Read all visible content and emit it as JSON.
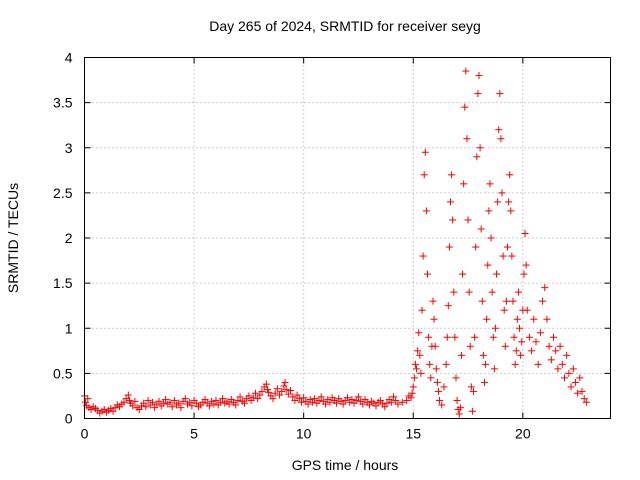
{
  "chart_data": {
    "type": "scatter",
    "title": "Day 265 of 2024, SRMTID for receiver seyg",
    "xlabel": "GPS time / hours",
    "ylabel": "SRMTID / TECUs",
    "xlim": [
      0,
      24
    ],
    "ylim": [
      0,
      4
    ],
    "x_ticks": [
      0,
      5,
      10,
      15,
      20
    ],
    "x_tick_labels": [
      "0",
      "5",
      "10",
      "15",
      "20"
    ],
    "y_ticks": [
      0,
      0.5,
      1,
      1.5,
      2,
      2.5,
      3,
      3.5,
      4
    ],
    "y_tick_labels": [
      "0",
      "0.5",
      "1",
      "1.5",
      "2",
      "2.5",
      "3",
      "3.5",
      "4"
    ],
    "grid": true,
    "marker": "plus",
    "colors": {
      "series": "#ff0000",
      "grid": "#a0a0a0",
      "axis": "#000000"
    },
    "series": [
      {
        "name": "SRMTID",
        "points": [
          [
            0.0,
            0.25
          ],
          [
            0.05,
            0.18
          ],
          [
            0.1,
            0.14
          ],
          [
            0.15,
            0.22
          ],
          [
            0.2,
            0.12
          ],
          [
            0.3,
            0.1
          ],
          [
            0.4,
            0.13
          ],
          [
            0.5,
            0.11
          ],
          [
            0.6,
            0.09
          ],
          [
            0.7,
            0.06
          ],
          [
            0.8,
            0.08
          ],
          [
            0.9,
            0.1
          ],
          [
            1.0,
            0.07
          ],
          [
            1.1,
            0.09
          ],
          [
            1.2,
            0.11
          ],
          [
            1.3,
            0.08
          ],
          [
            1.4,
            0.12
          ],
          [
            1.5,
            0.15
          ],
          [
            1.6,
            0.13
          ],
          [
            1.7,
            0.16
          ],
          [
            1.8,
            0.18
          ],
          [
            1.9,
            0.22
          ],
          [
            2.0,
            0.26
          ],
          [
            2.05,
            0.2
          ],
          [
            2.1,
            0.17
          ],
          [
            2.2,
            0.14
          ],
          [
            2.3,
            0.19
          ],
          [
            2.4,
            0.12
          ],
          [
            2.5,
            0.1
          ],
          [
            2.6,
            0.14
          ],
          [
            2.7,
            0.17
          ],
          [
            2.8,
            0.13
          ],
          [
            2.9,
            0.2
          ],
          [
            3.0,
            0.15
          ],
          [
            3.1,
            0.18
          ],
          [
            3.2,
            0.12
          ],
          [
            3.3,
            0.16
          ],
          [
            3.4,
            0.19
          ],
          [
            3.5,
            0.14
          ],
          [
            3.6,
            0.17
          ],
          [
            3.7,
            0.21
          ],
          [
            3.8,
            0.16
          ],
          [
            3.9,
            0.18
          ],
          [
            4.0,
            0.13
          ],
          [
            4.1,
            0.2
          ],
          [
            4.2,
            0.15
          ],
          [
            4.3,
            0.17
          ],
          [
            4.4,
            0.12
          ],
          [
            4.5,
            0.19
          ],
          [
            4.6,
            0.22
          ],
          [
            4.7,
            0.16
          ],
          [
            4.8,
            0.18
          ],
          [
            4.9,
            0.14
          ],
          [
            5.0,
            0.2
          ],
          [
            5.1,
            0.17
          ],
          [
            5.2,
            0.13
          ],
          [
            5.3,
            0.15
          ],
          [
            5.4,
            0.18
          ],
          [
            5.5,
            0.21
          ],
          [
            5.6,
            0.17
          ],
          [
            5.7,
            0.14
          ],
          [
            5.8,
            0.19
          ],
          [
            5.9,
            0.16
          ],
          [
            6.0,
            0.2
          ],
          [
            6.1,
            0.15
          ],
          [
            6.2,
            0.18
          ],
          [
            6.3,
            0.22
          ],
          [
            6.4,
            0.17
          ],
          [
            6.5,
            0.19
          ],
          [
            6.6,
            0.16
          ],
          [
            6.7,
            0.21
          ],
          [
            6.8,
            0.18
          ],
          [
            6.9,
            0.15
          ],
          [
            7.0,
            0.2
          ],
          [
            7.1,
            0.24
          ],
          [
            7.2,
            0.19
          ],
          [
            7.3,
            0.17
          ],
          [
            7.4,
            0.22
          ],
          [
            7.5,
            0.25
          ],
          [
            7.6,
            0.2
          ],
          [
            7.7,
            0.23
          ],
          [
            7.8,
            0.28
          ],
          [
            7.9,
            0.22
          ],
          [
            8.0,
            0.26
          ],
          [
            8.1,
            0.3
          ],
          [
            8.2,
            0.35
          ],
          [
            8.3,
            0.38
          ],
          [
            8.35,
            0.32
          ],
          [
            8.4,
            0.29
          ],
          [
            8.5,
            0.25
          ],
          [
            8.6,
            0.22
          ],
          [
            8.7,
            0.28
          ],
          [
            8.8,
            0.33
          ],
          [
            8.9,
            0.26
          ],
          [
            9.0,
            0.3
          ],
          [
            9.1,
            0.36
          ],
          [
            9.15,
            0.4
          ],
          [
            9.2,
            0.32
          ],
          [
            9.3,
            0.27
          ],
          [
            9.4,
            0.31
          ],
          [
            9.5,
            0.24
          ],
          [
            9.6,
            0.2
          ],
          [
            9.7,
            0.26
          ],
          [
            9.8,
            0.22
          ],
          [
            9.9,
            0.18
          ],
          [
            10.0,
            0.23
          ],
          [
            10.1,
            0.19
          ],
          [
            10.2,
            0.16
          ],
          [
            10.3,
            0.21
          ],
          [
            10.4,
            0.18
          ],
          [
            10.5,
            0.22
          ],
          [
            10.6,
            0.17
          ],
          [
            10.7,
            0.2
          ],
          [
            10.8,
            0.24
          ],
          [
            10.9,
            0.19
          ],
          [
            11.0,
            0.16
          ],
          [
            11.1,
            0.21
          ],
          [
            11.2,
            0.18
          ],
          [
            11.3,
            0.23
          ],
          [
            11.4,
            0.2
          ],
          [
            11.5,
            0.17
          ],
          [
            11.6,
            0.22
          ],
          [
            11.7,
            0.19
          ],
          [
            11.8,
            0.16
          ],
          [
            11.9,
            0.2
          ],
          [
            12.0,
            0.23
          ],
          [
            12.1,
            0.18
          ],
          [
            12.2,
            0.21
          ],
          [
            12.3,
            0.17
          ],
          [
            12.4,
            0.2
          ],
          [
            12.5,
            0.24
          ],
          [
            12.6,
            0.19
          ],
          [
            12.7,
            0.16
          ],
          [
            12.8,
            0.21
          ],
          [
            12.9,
            0.18
          ],
          [
            13.0,
            0.15
          ],
          [
            13.1,
            0.19
          ],
          [
            13.2,
            0.17
          ],
          [
            13.3,
            0.14
          ],
          [
            13.4,
            0.18
          ],
          [
            13.5,
            0.2
          ],
          [
            13.6,
            0.16
          ],
          [
            13.7,
            0.13
          ],
          [
            13.8,
            0.17
          ],
          [
            13.9,
            0.21
          ],
          [
            14.0,
            0.18
          ],
          [
            14.1,
            0.24
          ],
          [
            14.2,
            0.2
          ],
          [
            14.3,
            0.16
          ],
          [
            14.5,
            0.18
          ],
          [
            14.7,
            0.2
          ],
          [
            14.8,
            0.25
          ],
          [
            14.9,
            0.23
          ],
          [
            14.95,
            0.28
          ],
          [
            15.0,
            0.35
          ],
          [
            15.05,
            0.45
          ],
          [
            15.1,
            0.6
          ],
          [
            15.15,
            0.55
          ],
          [
            15.2,
            0.75
          ],
          [
            15.25,
            0.95
          ],
          [
            15.3,
            0.7
          ],
          [
            15.35,
            0.5
          ],
          [
            15.4,
            1.2
          ],
          [
            15.45,
            1.8
          ],
          [
            15.5,
            2.7
          ],
          [
            15.55,
            2.95
          ],
          [
            15.6,
            2.3
          ],
          [
            15.65,
            1.6
          ],
          [
            15.7,
            0.9
          ],
          [
            15.75,
            0.6
          ],
          [
            15.8,
            0.45
          ],
          [
            15.85,
            0.8
          ],
          [
            15.9,
            1.3
          ],
          [
            15.95,
            1.1
          ],
          [
            16.0,
            0.8
          ],
          [
            16.05,
            0.55
          ],
          [
            16.1,
            0.4
          ],
          [
            16.15,
            0.3
          ],
          [
            16.2,
            0.2
          ],
          [
            16.3,
            0.15
          ],
          [
            16.4,
            0.35
          ],
          [
            16.5,
            0.6
          ],
          [
            16.55,
            0.9
          ],
          [
            16.6,
            1.25
          ],
          [
            16.65,
            1.9
          ],
          [
            16.7,
            2.4
          ],
          [
            16.75,
            2.7
          ],
          [
            16.8,
            2.2
          ],
          [
            16.85,
            1.4
          ],
          [
            16.9,
            0.9
          ],
          [
            16.95,
            0.45
          ],
          [
            17.0,
            0.2
          ],
          [
            17.05,
            0.1
          ],
          [
            17.1,
            0.05
          ],
          [
            17.15,
            0.12
          ],
          [
            17.2,
            0.7
          ],
          [
            17.25,
            1.6
          ],
          [
            17.3,
            2.6
          ],
          [
            17.35,
            3.45
          ],
          [
            17.4,
            3.85
          ],
          [
            17.45,
            3.1
          ],
          [
            17.5,
            2.2
          ],
          [
            17.55,
            1.4
          ],
          [
            17.6,
            0.8
          ],
          [
            17.65,
            0.35
          ],
          [
            17.7,
            0.08
          ],
          [
            17.75,
            0.3
          ],
          [
            17.8,
            0.9
          ],
          [
            17.85,
            1.9
          ],
          [
            17.9,
            2.9
          ],
          [
            17.95,
            3.6
          ],
          [
            18.0,
            3.8
          ],
          [
            18.05,
            3.0
          ],
          [
            18.1,
            2.1
          ],
          [
            18.15,
            1.3
          ],
          [
            18.2,
            0.7
          ],
          [
            18.25,
            0.4
          ],
          [
            18.3,
            0.6
          ],
          [
            18.35,
            1.1
          ],
          [
            18.4,
            1.7
          ],
          [
            18.45,
            2.3
          ],
          [
            18.5,
            2.6
          ],
          [
            18.55,
            2.0
          ],
          [
            18.6,
            1.4
          ],
          [
            18.65,
            0.9
          ],
          [
            18.7,
            0.55
          ],
          [
            18.75,
            1.0
          ],
          [
            18.8,
            1.6
          ],
          [
            18.85,
            2.4
          ],
          [
            18.9,
            3.2
          ],
          [
            18.95,
            3.6
          ],
          [
            19.0,
            3.1
          ],
          [
            19.05,
            2.5
          ],
          [
            19.1,
            1.8
          ],
          [
            19.15,
            1.2
          ],
          [
            19.2,
            0.8
          ],
          [
            19.25,
            1.3
          ],
          [
            19.3,
            1.9
          ],
          [
            19.35,
            2.4
          ],
          [
            19.4,
            2.7
          ],
          [
            19.45,
            2.3
          ],
          [
            19.5,
            1.8
          ],
          [
            19.55,
            1.3
          ],
          [
            19.6,
            0.9
          ],
          [
            19.65,
            0.6
          ],
          [
            19.7,
            0.75
          ],
          [
            19.75,
            1.1
          ],
          [
            19.8,
            1.4
          ],
          [
            19.85,
            1.0
          ],
          [
            19.9,
            0.7
          ],
          [
            19.95,
            0.85
          ],
          [
            20.0,
            1.2
          ],
          [
            20.05,
            1.6
          ],
          [
            20.1,
            2.05
          ],
          [
            20.15,
            1.7
          ],
          [
            20.2,
            1.2
          ],
          [
            20.3,
            0.9
          ],
          [
            20.4,
            0.75
          ],
          [
            20.5,
            1.1
          ],
          [
            20.6,
            0.85
          ],
          [
            20.7,
            0.6
          ],
          [
            20.8,
            0.95
          ],
          [
            20.9,
            1.3
          ],
          [
            21.0,
            1.45
          ],
          [
            21.1,
            1.1
          ],
          [
            21.2,
            0.8
          ],
          [
            21.3,
            0.65
          ],
          [
            21.4,
            0.9
          ],
          [
            21.5,
            0.75
          ],
          [
            21.6,
            0.55
          ],
          [
            21.7,
            0.8
          ],
          [
            21.8,
            0.6
          ],
          [
            21.9,
            0.45
          ],
          [
            22.0,
            0.7
          ],
          [
            22.1,
            0.5
          ],
          [
            22.2,
            0.35
          ],
          [
            22.3,
            0.55
          ],
          [
            22.4,
            0.4
          ],
          [
            22.5,
            0.28
          ],
          [
            22.6,
            0.45
          ],
          [
            22.7,
            0.3
          ],
          [
            22.8,
            0.22
          ],
          [
            22.9,
            0.18
          ]
        ]
      }
    ]
  }
}
